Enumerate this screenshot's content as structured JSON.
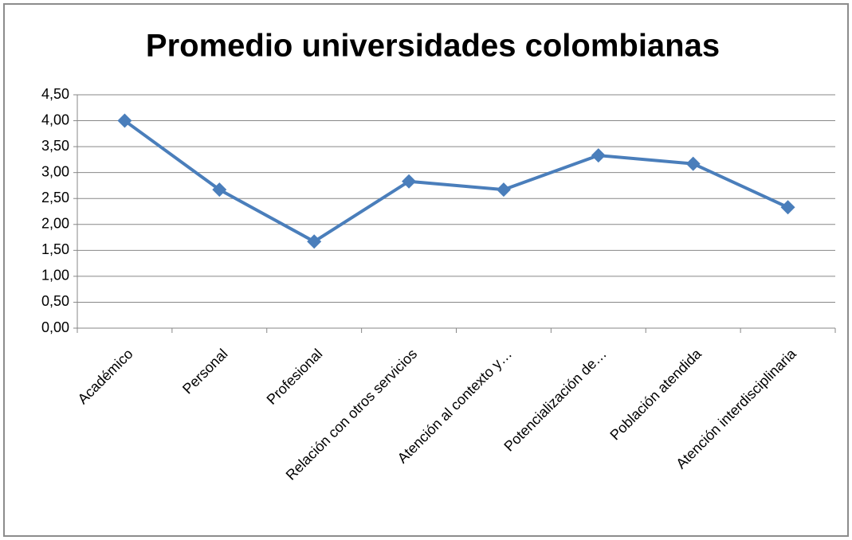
{
  "chart_data": {
    "type": "line",
    "title": "Promedio universidades colombianas",
    "categories": [
      "Académico",
      "Personal",
      "Profesional",
      "Relación con otros servicios",
      "Atención al contexto y…",
      "Potencialización de…",
      "Población atendida",
      "Atención interdisciplinaria"
    ],
    "values": [
      4.0,
      2.67,
      1.67,
      2.83,
      2.67,
      3.33,
      3.17,
      2.33
    ],
    "color": "#4a7ebb",
    "ylim": [
      0,
      4.5
    ],
    "yticks": [
      {
        "value": 0,
        "label": "0,00"
      },
      {
        "value": 0.5,
        "label": "0,50"
      },
      {
        "value": 1,
        "label": "1,00"
      },
      {
        "value": 1.5,
        "label": "1,50"
      },
      {
        "value": 2,
        "label": "2,00"
      },
      {
        "value": 2.5,
        "label": "2,50"
      },
      {
        "value": 3,
        "label": "3,00"
      },
      {
        "value": 3.5,
        "label": "3,50"
      },
      {
        "value": 4,
        "label": "4,00"
      },
      {
        "value": 4.5,
        "label": "4,50"
      }
    ],
    "grid": true
  }
}
